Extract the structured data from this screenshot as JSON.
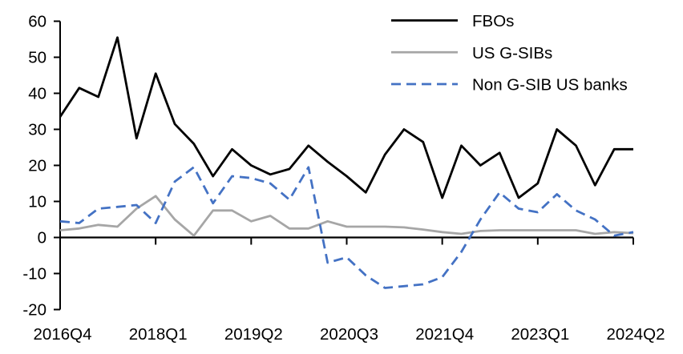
{
  "chart_data": {
    "type": "line",
    "title": "",
    "xlabel": "",
    "ylabel": "",
    "ylim": [
      -20,
      60
    ],
    "y_ticks": [
      60,
      50,
      40,
      30,
      20,
      10,
      0,
      -10,
      -20
    ],
    "x_tick_labels": [
      "2016Q4",
      "2018Q1",
      "2019Q2",
      "2020Q3",
      "2021Q4",
      "2023Q1",
      "2024Q2"
    ],
    "x_tick_positions": [
      0,
      5,
      10,
      15,
      20,
      25,
      30
    ],
    "grid": false,
    "legend_position": "top-right",
    "categories": [
      "2016Q4",
      "2017Q1",
      "2017Q2",
      "2017Q3",
      "2017Q4",
      "2018Q1",
      "2018Q2",
      "2018Q3",
      "2018Q4",
      "2019Q1",
      "2019Q2",
      "2019Q3",
      "2019Q4",
      "2020Q1",
      "2020Q2",
      "2020Q3",
      "2020Q4",
      "2021Q1",
      "2021Q2",
      "2021Q3",
      "2021Q4",
      "2022Q1",
      "2022Q2",
      "2022Q3",
      "2022Q4",
      "2023Q1",
      "2023Q2",
      "2023Q3",
      "2023Q4",
      "2024Q1",
      "2024Q2"
    ],
    "series": [
      {
        "name": "FBOs",
        "color": "#000000",
        "dash": "",
        "values": [
          33.5,
          41.5,
          39,
          55.5,
          27.5,
          45.5,
          31.5,
          26,
          17,
          24.5,
          20,
          17.5,
          19,
          25.5,
          21,
          17,
          12.5,
          23,
          30,
          26.5,
          11,
          25.5,
          20,
          23.5,
          11,
          15,
          30,
          25.5,
          14.5,
          24.5,
          24.5
        ]
      },
      {
        "name": "US G-SIBs",
        "color": "#a6a6a6",
        "dash": "",
        "values": [
          2,
          2.5,
          3.5,
          3,
          8,
          11.5,
          5,
          0.5,
          7.5,
          7.5,
          4.5,
          6,
          2.5,
          2.5,
          4.5,
          3,
          3,
          3,
          2.8,
          2.2,
          1.5,
          1,
          1.8,
          2,
          2,
          2,
          2,
          2,
          1,
          1.5,
          1.2
        ]
      },
      {
        "name": "Non G-SIB US banks",
        "color": "#4472c4",
        "dash": "12 7",
        "values": [
          4.5,
          4,
          8,
          8.5,
          9,
          4,
          15.5,
          19.5,
          9.5,
          17,
          16.5,
          15,
          10.5,
          19.5,
          -7,
          -5.5,
          -10.5,
          -14,
          -13.5,
          -13,
          -11,
          -4,
          5,
          12.5,
          8,
          7,
          12,
          7.5,
          5,
          0.5,
          1.5
        ]
      }
    ]
  }
}
